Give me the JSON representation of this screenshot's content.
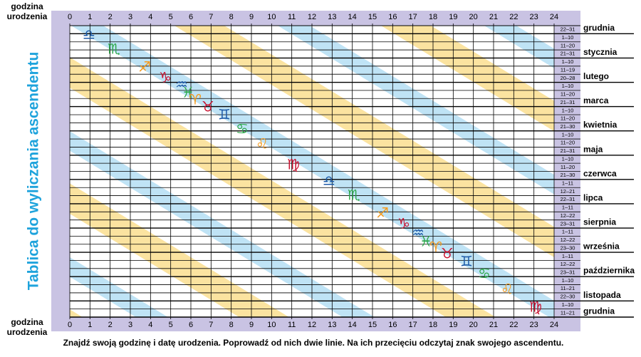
{
  "title": "Tablica do wyliczania ascendentu",
  "hour_label_lines": [
    "godzina",
    "urodzenia"
  ],
  "hours": [
    0,
    1,
    2,
    3,
    4,
    5,
    6,
    7,
    8,
    9,
    10,
    11,
    12,
    13,
    14,
    15,
    16,
    17,
    18,
    19,
    20,
    21,
    22,
    23,
    24
  ],
  "rows": [
    {
      "range": "22–31",
      "month": "grudnia"
    },
    {
      "range": "1–10"
    },
    {
      "range": "11–20"
    },
    {
      "range": "21–31",
      "month": "stycznia"
    },
    {
      "range": "1–10"
    },
    {
      "range": "11–19"
    },
    {
      "range": "20–28",
      "month": "lutego"
    },
    {
      "range": "1–10"
    },
    {
      "range": "11–20"
    },
    {
      "range": "21–31",
      "month": "marca"
    },
    {
      "range": "1–10"
    },
    {
      "range": "11–20"
    },
    {
      "range": "21–30",
      "month": "kwietnia"
    },
    {
      "range": "1–10"
    },
    {
      "range": "11–20"
    },
    {
      "range": "21–31",
      "month": "maja"
    },
    {
      "range": "1–10"
    },
    {
      "range": "11–20"
    },
    {
      "range": "21–30",
      "month": "czerwca"
    },
    {
      "range": "1–11"
    },
    {
      "range": "12–21"
    },
    {
      "range": "22–31",
      "month": "lipca"
    },
    {
      "range": "1–11"
    },
    {
      "range": "12–22"
    },
    {
      "range": "23–31",
      "month": "sierpnia"
    },
    {
      "range": "1–11"
    },
    {
      "range": "12–22"
    },
    {
      "range": "23–30",
      "month": "września"
    },
    {
      "range": "1–11"
    },
    {
      "range": "12–22"
    },
    {
      "range": "23–31",
      "month": "października"
    },
    {
      "range": "1–10"
    },
    {
      "range": "11–21"
    },
    {
      "range": "22–30",
      "month": "listopada"
    },
    {
      "range": "1–10"
    },
    {
      "range": "11–21",
      "month": "grudnia"
    }
  ],
  "signs": [
    "♎",
    "♏",
    "♐",
    "♑",
    "♒",
    "♓",
    "♈",
    "♉",
    "♊",
    "♋",
    "♌",
    "♍",
    "♎",
    "♏",
    "♐",
    "♑",
    "♒",
    "♓",
    "♈",
    "♉",
    "♊",
    "♋",
    "♌",
    "♍"
  ],
  "footer": "Znajdź swoją godzinę i datę urodzenia. Poprowadź od nich dwie linie. Na ich przecięciu odczytaj znak swojego ascendentu."
}
